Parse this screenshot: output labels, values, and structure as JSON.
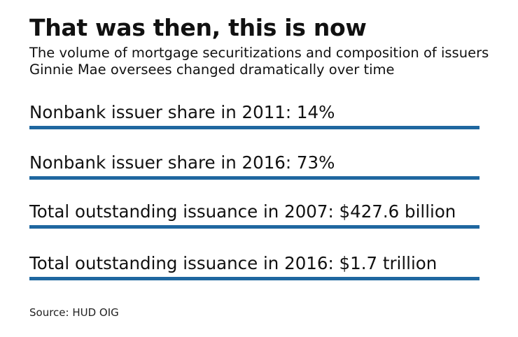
{
  "title": "That was then, this is now",
  "subtitle": "The volume of mortgage securitizations and composition of issuers Ginnie Mae oversees changed dramatically over time",
  "accent_color": "#1f67a0",
  "stats": [
    {
      "label": "Nonbank issuer share in 2011: 14%"
    },
    {
      "label": "Nonbank issuer share in 2016: 73%"
    },
    {
      "label": "Total outstanding issuance in 2007: $427.6 billion"
    },
    {
      "label": "Total outstanding issuance in 2016: $1.7 trillion"
    }
  ],
  "source": "Source: HUD OIG"
}
